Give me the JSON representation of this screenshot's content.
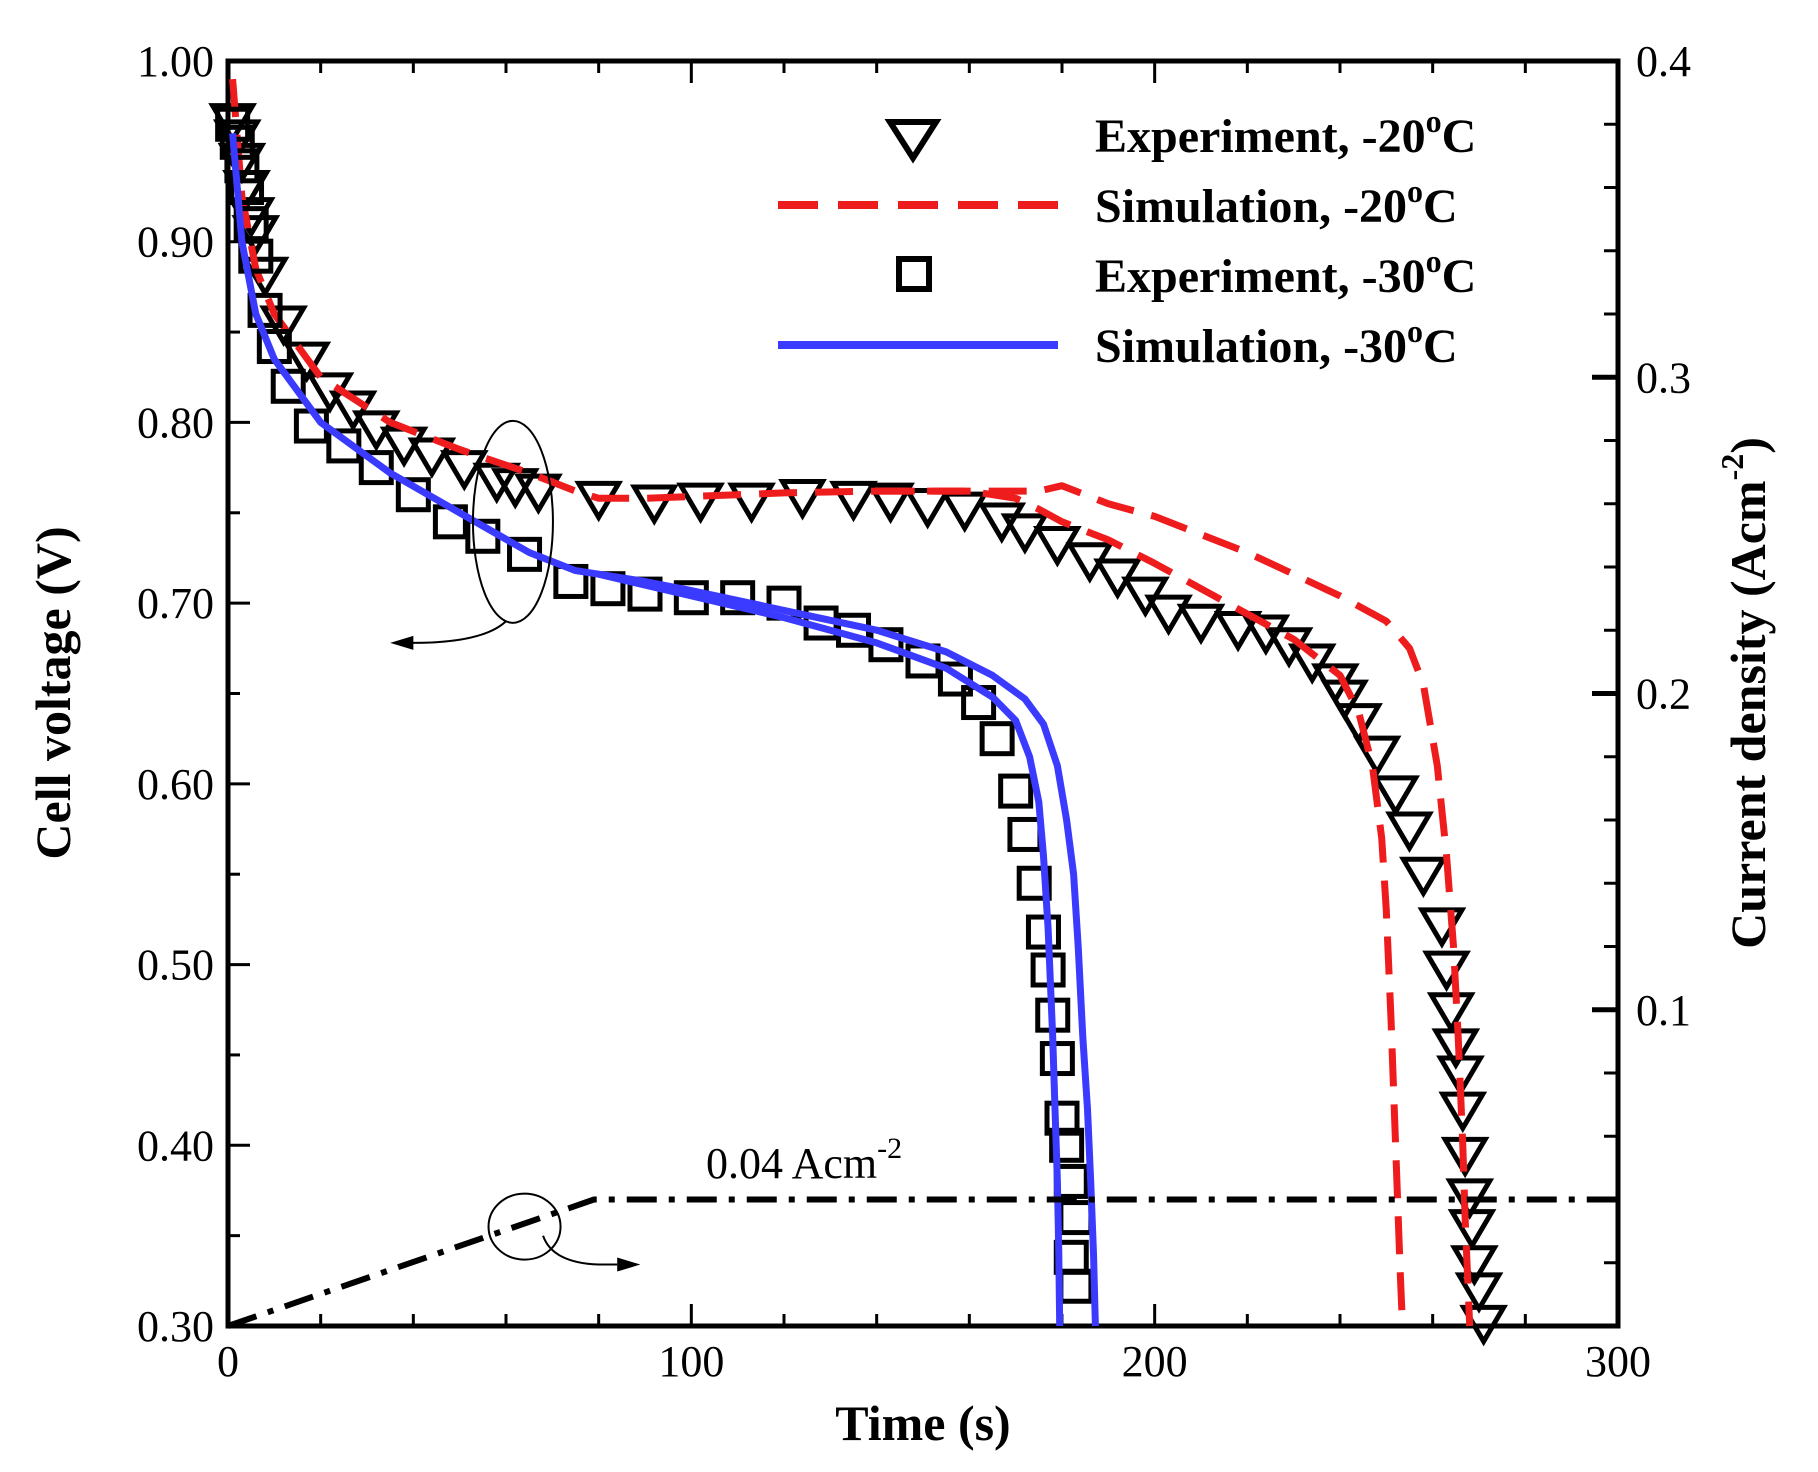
{
  "chart_data": {
    "type": "line",
    "title": "",
    "xlabel": "Time (s)",
    "ylabel": "Cell voltage (V)",
    "y2label": "Current density (Acm",
    "y2label_sup": "-2",
    "y2label_close": ")",
    "xlim": [
      0,
      300
    ],
    "ylim": [
      0.3,
      1.0
    ],
    "y2lim": [
      0.0,
      0.4
    ],
    "x_ticks": [
      0,
      100,
      200,
      300
    ],
    "x_tick_labels": [
      "0",
      "100",
      "200",
      "300"
    ],
    "y_ticks": [
      0.3,
      0.4,
      0.5,
      0.6,
      0.7,
      0.8,
      0.9,
      1.0
    ],
    "y_tick_labels": [
      "0.30",
      "0.40",
      "0.50",
      "0.60",
      "0.70",
      "0.80",
      "0.90",
      "1.00"
    ],
    "y2_ticks": [
      0.1,
      0.2,
      0.3,
      0.4
    ],
    "y2_tick_labels": [
      "0.1",
      "0.2",
      "0.3",
      "0.4"
    ],
    "colors": {
      "red": "#ee1c1c",
      "blue": "#3b3bff",
      "black": "#000000"
    },
    "legend": [
      {
        "label": "Experiment, -20",
        "sup": "o",
        "tail": "C",
        "marker": "triangle-down",
        "color": "#000000"
      },
      {
        "label": "Simulation, -20",
        "sup": "o",
        "tail": "C",
        "line": "dashed",
        "color": "#ee1c1c"
      },
      {
        "label": "Experiment, -30",
        "sup": "o",
        "tail": "C",
        "marker": "square",
        "color": "#000000"
      },
      {
        "label": "Simulation, -30",
        "sup": "o",
        "tail": "C",
        "line": "solid",
        "color": "#3b3bff"
      }
    ],
    "annotation": {
      "text": "0.04 Acm",
      "sup": "-2"
    },
    "series": [
      {
        "name": "Experiment, -20oC",
        "axis": "left",
        "marker": "triangle-down",
        "x": [
          1,
          2,
          3,
          4,
          5,
          6,
          8,
          12,
          17,
          22,
          27,
          32,
          38,
          44,
          51,
          58,
          62,
          67,
          80,
          92,
          102,
          113,
          124,
          135,
          143,
          151,
          159,
          167,
          172,
          179,
          186,
          192,
          198,
          203,
          210,
          218,
          224,
          229,
          234,
          239,
          241,
          244,
          248,
          252,
          255,
          258,
          262,
          263,
          264,
          265,
          266,
          266.5,
          267,
          268,
          268.5,
          269,
          270,
          271
        ],
        "y": [
          0.967,
          0.958,
          0.945,
          0.93,
          0.915,
          0.905,
          0.882,
          0.855,
          0.835,
          0.818,
          0.808,
          0.797,
          0.788,
          0.782,
          0.775,
          0.768,
          0.765,
          0.762,
          0.758,
          0.756,
          0.757,
          0.757,
          0.759,
          0.758,
          0.757,
          0.754,
          0.752,
          0.746,
          0.74,
          0.733,
          0.724,
          0.715,
          0.705,
          0.695,
          0.69,
          0.686,
          0.684,
          0.677,
          0.668,
          0.657,
          0.648,
          0.635,
          0.617,
          0.595,
          0.575,
          0.55,
          0.522,
          0.498,
          0.475,
          0.455,
          0.44,
          0.42,
          0.395,
          0.372,
          0.355,
          0.335,
          0.32,
          0.302
        ]
      },
      {
        "name": "Simulation, -20oC",
        "axis": "left",
        "line": "dashed",
        "x": [
          1,
          3,
          6,
          10,
          20,
          35,
          50,
          65,
          75,
          80,
          90,
          100,
          120,
          140,
          160,
          170,
          175,
          180,
          190,
          200,
          210,
          220,
          230,
          240,
          244,
          247,
          249,
          250,
          251,
          252,
          253,
          253.5
        ],
        "y": [
          0.99,
          0.925,
          0.885,
          0.86,
          0.825,
          0.8,
          0.785,
          0.772,
          0.762,
          0.758,
          0.758,
          0.759,
          0.761,
          0.762,
          0.762,
          0.758,
          0.752,
          0.745,
          0.735,
          0.722,
          0.708,
          0.694,
          0.68,
          0.66,
          0.64,
          0.61,
          0.57,
          0.53,
          0.47,
          0.4,
          0.33,
          0.3
        ]
      },
      {
        "name": "Simulation, -20oC (upper)",
        "axis": "left",
        "line": "dashed",
        "x": [
          140,
          160,
          170,
          175,
          180,
          190,
          200,
          210,
          220,
          230,
          240,
          250,
          255,
          258,
          261,
          263,
          264.5,
          265.5,
          266.5,
          267,
          267.5,
          268
        ],
        "y": [
          0.762,
          0.762,
          0.762,
          0.762,
          0.765,
          0.755,
          0.748,
          0.738,
          0.728,
          0.716,
          0.704,
          0.69,
          0.675,
          0.655,
          0.61,
          0.56,
          0.51,
          0.46,
          0.4,
          0.36,
          0.33,
          0.3
        ]
      },
      {
        "name": "Experiment, -30oC",
        "axis": "left",
        "marker": "square",
        "x": [
          1,
          2,
          3,
          4,
          5,
          6,
          8,
          10,
          13,
          18,
          25,
          32,
          40,
          48,
          55,
          64,
          74,
          82,
          90,
          100,
          110,
          120,
          128,
          135,
          142,
          150,
          157,
          162,
          166,
          170,
          172,
          174,
          176,
          177,
          178,
          179,
          180,
          181,
          182,
          183,
          182,
          183
        ],
        "y": [
          0.965,
          0.955,
          0.942,
          0.93,
          0.91,
          0.892,
          0.862,
          0.842,
          0.82,
          0.798,
          0.787,
          0.775,
          0.76,
          0.745,
          0.737,
          0.727,
          0.712,
          0.708,
          0.705,
          0.703,
          0.703,
          0.7,
          0.689,
          0.685,
          0.677,
          0.668,
          0.658,
          0.645,
          0.625,
          0.596,
          0.572,
          0.545,
          0.518,
          0.497,
          0.472,
          0.448,
          0.415,
          0.4,
          0.38,
          0.36,
          0.338,
          0.322
        ]
      },
      {
        "name": "Simulation, -30oC",
        "axis": "left",
        "line": "solid",
        "x": [
          1,
          3,
          6,
          10,
          20,
          35,
          50,
          65,
          75,
          80,
          90,
          100,
          120,
          140,
          155,
          165,
          170,
          173,
          175,
          176,
          177,
          178,
          178.5,
          179,
          179.3,
          179.5
        ],
        "y": [
          0.96,
          0.9,
          0.86,
          0.835,
          0.8,
          0.772,
          0.75,
          0.728,
          0.718,
          0.716,
          0.71,
          0.704,
          0.692,
          0.678,
          0.664,
          0.648,
          0.635,
          0.615,
          0.59,
          0.56,
          0.52,
          0.46,
          0.42,
          0.38,
          0.34,
          0.3
        ]
      },
      {
        "name": "Simulation, -30oC (upper)",
        "axis": "left",
        "line": "solid",
        "x": [
          80,
          90,
          100,
          120,
          140,
          155,
          165,
          172,
          176,
          179,
          181,
          182.5,
          183.5,
          184.5,
          185.5,
          186.2,
          186.8,
          187.2
        ],
        "y": [
          0.716,
          0.712,
          0.707,
          0.696,
          0.685,
          0.673,
          0.66,
          0.647,
          0.633,
          0.61,
          0.58,
          0.55,
          0.51,
          0.46,
          0.42,
          0.38,
          0.34,
          0.3
        ]
      },
      {
        "name": "Current density",
        "axis": "right",
        "line": "dashdot",
        "x": [
          0,
          79,
          300
        ],
        "y": [
          0.0,
          0.04,
          0.04
        ]
      }
    ]
  }
}
